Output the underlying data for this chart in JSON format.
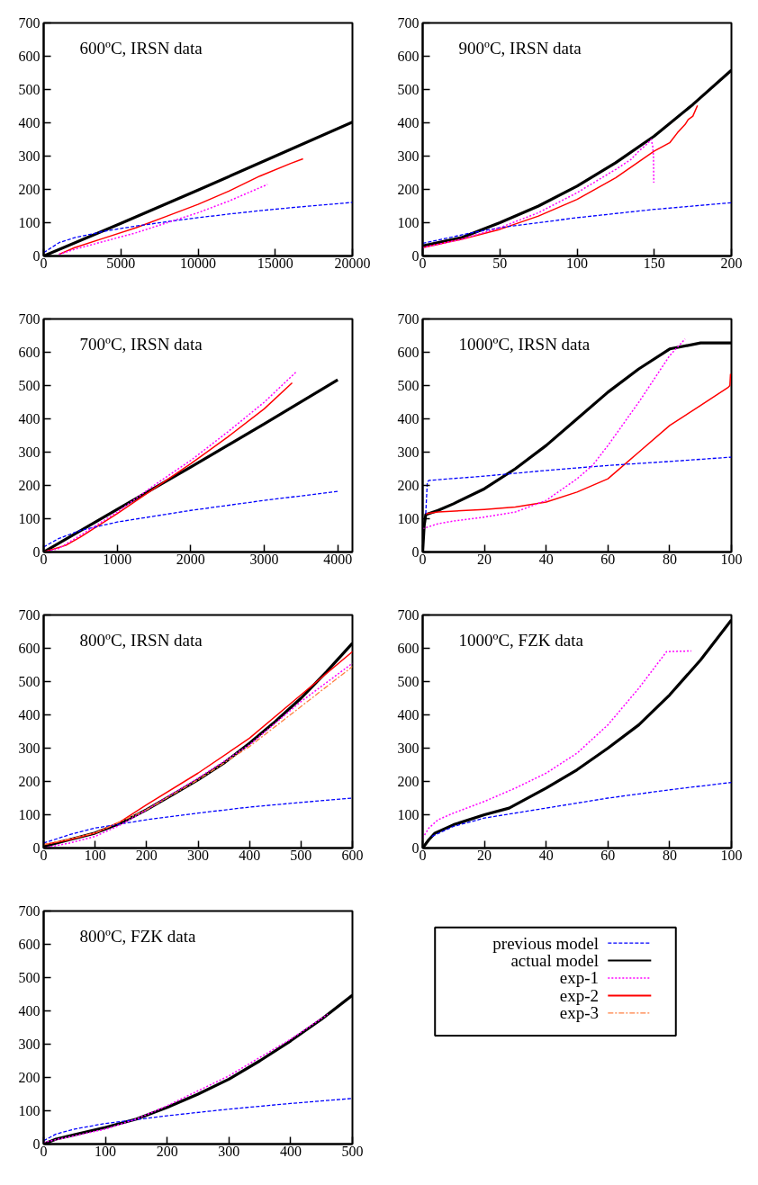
{
  "chart_data": [
    {
      "type": "line",
      "title": "600ºC, IRSN data",
      "legend": "right",
      "xlim": [
        0,
        20000
      ],
      "xticks": [
        0,
        5000,
        10000,
        15000,
        20000
      ],
      "ylim": [
        0,
        700
      ],
      "yticks": [
        0,
        100,
        200,
        300,
        400,
        500,
        600,
        700
      ],
      "series": [
        {
          "name": "previous model",
          "color": "#0000ff",
          "line_style": "dashed",
          "x": [
            0,
            1000,
            2000,
            4000,
            6000,
            8000,
            10000,
            12000,
            14000,
            16000,
            18000,
            20000
          ],
          "values": [
            10,
            40,
            55,
            75,
            90,
            103,
            115,
            126,
            136,
            145,
            153,
            161
          ]
        },
        {
          "name": "actual model",
          "color": "#000000",
          "line_style": "solid",
          "x": [
            0,
            5000,
            10000,
            15000,
            20000
          ],
          "values": [
            0,
            98,
            198,
            300,
            402
          ]
        },
        {
          "name": "exp-1",
          "color": "#ff00ff",
          "line_style": "dotted",
          "x": [
            1000,
            2000,
            4000,
            6000,
            8000,
            10000,
            12000,
            14000,
            14500
          ],
          "values": [
            5,
            20,
            45,
            70,
            100,
            130,
            165,
            205,
            215
          ]
        },
        {
          "name": "exp-2",
          "color": "#ff0000",
          "line_style": "solid",
          "x": [
            1000,
            2000,
            4000,
            6000,
            8000,
            10000,
            12000,
            14000,
            16000,
            16800
          ],
          "values": [
            5,
            25,
            55,
            85,
            120,
            155,
            195,
            240,
            278,
            292
          ]
        }
      ]
    },
    {
      "type": "line",
      "title": "900ºC, IRSN data",
      "legend": "right",
      "xlim": [
        0,
        200
      ],
      "xticks": [
        0,
        50,
        100,
        150,
        200
      ],
      "ylim": [
        0,
        700
      ],
      "yticks": [
        0,
        100,
        200,
        300,
        400,
        500,
        600,
        700
      ],
      "series": [
        {
          "name": "previous model",
          "color": "#0000ff",
          "line_style": "dashed",
          "x": [
            0,
            30,
            50,
            100,
            150,
            200
          ],
          "values": [
            38,
            68,
            85,
            115,
            140,
            160
          ]
        },
        {
          "name": "actual model",
          "color": "#000000",
          "line_style": "solid",
          "x": [
            0,
            25,
            50,
            75,
            100,
            125,
            150,
            175,
            200
          ],
          "values": [
            30,
            55,
            100,
            150,
            210,
            280,
            360,
            455,
            558
          ]
        },
        {
          "name": "exp-1",
          "color": "#ff00ff",
          "line_style": "dotted",
          "x": [
            0,
            25,
            50,
            75,
            100,
            125,
            135,
            140,
            145,
            148,
            149,
            149.5,
            149.7
          ],
          "values": [
            25,
            50,
            85,
            130,
            190,
            260,
            290,
            315,
            335,
            350,
            330,
            300,
            220
          ]
        },
        {
          "name": "exp-2",
          "color": "#ff0000",
          "line_style": "solid",
          "x": [
            0,
            25,
            50,
            75,
            100,
            125,
            150,
            160,
            165,
            170,
            172,
            175,
            178
          ],
          "values": [
            25,
            50,
            80,
            120,
            170,
            235,
            315,
            340,
            370,
            395,
            410,
            420,
            452
          ]
        }
      ]
    },
    {
      "type": "line",
      "title": "700ºC, IRSN data",
      "legend": "right",
      "xlim": [
        0,
        4200
      ],
      "xticks": [
        0,
        1000,
        2000,
        3000,
        4000
      ],
      "ylim": [
        0,
        700
      ],
      "yticks": [
        0,
        100,
        200,
        300,
        400,
        500,
        600,
        700
      ],
      "series": [
        {
          "name": "previous model",
          "color": "#0000ff",
          "line_style": "dashed",
          "x": [
            0,
            200,
            500,
            1000,
            2000,
            3000,
            4000
          ],
          "values": [
            15,
            40,
            65,
            90,
            125,
            155,
            182
          ]
        },
        {
          "name": "actual model",
          "color": "#000000",
          "line_style": "solid",
          "x": [
            0,
            1000,
            2000,
            3000,
            4000
          ],
          "values": [
            0,
            128,
            255,
            385,
            517
          ]
        },
        {
          "name": "exp-1",
          "color": "#ff00ff",
          "line_style": "dotted",
          "x": [
            0,
            200,
            500,
            1000,
            1500,
            2000,
            2500,
            3000,
            3440
          ],
          "values": [
            0,
            10,
            50,
            120,
            200,
            275,
            360,
            450,
            542
          ]
        },
        {
          "name": "exp-2",
          "color": "#ff0000",
          "line_style": "solid",
          "x": [
            0,
            300,
            500,
            1000,
            1500,
            2000,
            2500,
            3000,
            3380
          ],
          "values": [
            0,
            20,
            45,
            115,
            190,
            265,
            345,
            430,
            508
          ]
        }
      ]
    },
    {
      "type": "line",
      "title": "1000ºC, IRSN data",
      "legend": "right",
      "xlim": [
        0,
        100
      ],
      "xticks": [
        0,
        20,
        40,
        60,
        80,
        100
      ],
      "ylim": [
        0,
        700
      ],
      "yticks": [
        0,
        100,
        200,
        300,
        400,
        500,
        600,
        700
      ],
      "series": [
        {
          "name": "previous model",
          "color": "#0000ff",
          "line_style": "dashed",
          "x": [
            1,
            1.5,
            2,
            20,
            40,
            60,
            80,
            100
          ],
          "values": [
            115,
            210,
            215,
            228,
            245,
            260,
            272,
            285
          ]
        },
        {
          "name": "actual model",
          "color": "#000000",
          "line_style": "solid",
          "x": [
            0,
            0.5,
            1,
            5,
            10,
            20,
            30,
            40,
            50,
            60,
            70,
            80,
            90,
            100
          ],
          "values": [
            0,
            80,
            112,
            125,
            145,
            190,
            250,
            320,
            400,
            480,
            550,
            610,
            628,
            628
          ]
        },
        {
          "name": "exp-1",
          "color": "#ff00ff",
          "line_style": "dotted",
          "x": [
            0,
            5,
            10,
            20,
            30,
            40,
            50,
            55,
            60,
            70,
            80,
            85
          ],
          "values": [
            70,
            85,
            93,
            105,
            120,
            155,
            220,
            260,
            320,
            450,
            590,
            640
          ]
        },
        {
          "name": "exp-2",
          "color": "#ff0000",
          "line_style": "solid",
          "x": [
            1,
            5,
            20,
            30,
            40,
            50,
            60,
            70,
            80,
            90,
            99,
            99.5,
            99.7
          ],
          "values": [
            115,
            120,
            128,
            135,
            150,
            180,
            220,
            300,
            380,
            440,
            495,
            500,
            535
          ]
        }
      ]
    },
    {
      "type": "line",
      "title": "800ºC, IRSN data",
      "legend": "right",
      "xlim": [
        0,
        600
      ],
      "xticks": [
        0,
        100,
        200,
        300,
        400,
        500,
        600
      ],
      "ylim": [
        0,
        700
      ],
      "yticks": [
        0,
        100,
        200,
        300,
        400,
        500,
        600,
        700
      ],
      "series": [
        {
          "name": "previous model",
          "color": "#0000ff",
          "line_style": "dashed",
          "x": [
            0,
            50,
            100,
            200,
            300,
            400,
            500,
            600
          ],
          "values": [
            15,
            40,
            60,
            85,
            105,
            123,
            137,
            150
          ]
        },
        {
          "name": "actual model",
          "color": "#000000",
          "line_style": "solid",
          "x": [
            0,
            50,
            100,
            150,
            200,
            250,
            300,
            350,
            400,
            450,
            500,
            550,
            600
          ],
          "values": [
            5,
            25,
            45,
            75,
            115,
            160,
            205,
            255,
            315,
            380,
            450,
            530,
            615
          ]
        },
        {
          "name": "exp-1",
          "color": "#ff00ff",
          "line_style": "dotted",
          "x": [
            0,
            50,
            100,
            150,
            200,
            300,
            400,
            500,
            600
          ],
          "values": [
            0,
            15,
            35,
            70,
            115,
            210,
            310,
            440,
            555
          ]
        },
        {
          "name": "exp-2",
          "color": "#ff0000",
          "line_style": "solid",
          "x": [
            0,
            50,
            100,
            150,
            200,
            300,
            400,
            500,
            600
          ],
          "values": [
            10,
            25,
            45,
            80,
            130,
            225,
            330,
            460,
            590
          ]
        },
        {
          "name": "exp-3",
          "color": "#ff7f40",
          "line_style": "dashdot",
          "x": [
            0,
            100,
            200,
            300,
            400,
            500,
            600
          ],
          "values": [
            10,
            45,
            115,
            205,
            305,
            425,
            545
          ]
        }
      ]
    },
    {
      "type": "line",
      "title": "1000ºC, FZK data",
      "legend": "right",
      "xlim": [
        0,
        100
      ],
      "xticks": [
        0,
        20,
        40,
        60,
        80,
        100
      ],
      "ylim": [
        0,
        700
      ],
      "yticks": [
        0,
        100,
        200,
        300,
        400,
        500,
        600,
        700
      ],
      "series": [
        {
          "name": "previous model",
          "color": "#0000ff",
          "line_style": "dashed",
          "x": [
            3,
            10,
            20,
            40,
            60,
            80,
            100
          ],
          "values": [
            35,
            65,
            90,
            120,
            150,
            175,
            197
          ]
        },
        {
          "name": "actual model",
          "color": "#000000",
          "line_style": "solid",
          "x": [
            0,
            2,
            4,
            10,
            20,
            28,
            40,
            50,
            60,
            70,
            80,
            90,
            100
          ],
          "values": [
            0,
            25,
            45,
            70,
            100,
            120,
            180,
            235,
            300,
            370,
            460,
            565,
            685
          ]
        },
        {
          "name": "exp-1",
          "color": "#ff00ff",
          "line_style": "dotted",
          "x": [
            0,
            2,
            5,
            10,
            20,
            30,
            40,
            50,
            60,
            70,
            79,
            87
          ],
          "values": [
            30,
            60,
            85,
            105,
            140,
            180,
            225,
            285,
            370,
            480,
            590,
            592
          ]
        }
      ]
    },
    {
      "type": "line",
      "title": "800ºC, FZK data",
      "xlim": [
        0,
        500
      ],
      "xticks": [
        0,
        100,
        200,
        300,
        400,
        500
      ],
      "ylim": [
        0,
        700
      ],
      "yticks": [
        0,
        100,
        200,
        300,
        400,
        500,
        600,
        700
      ],
      "legend": "right",
      "series": [
        {
          "name": "previous model",
          "color": "#0000ff",
          "line_style": "dashed",
          "x": [
            0,
            20,
            50,
            100,
            200,
            300,
            400,
            500
          ],
          "values": [
            10,
            30,
            45,
            62,
            85,
            105,
            122,
            137
          ]
        },
        {
          "name": "actual model",
          "color": "#000000",
          "line_style": "solid",
          "x": [
            0,
            20,
            50,
            100,
            150,
            200,
            250,
            300,
            350,
            400,
            450,
            500
          ],
          "values": [
            0,
            15,
            28,
            50,
            75,
            110,
            150,
            195,
            250,
            310,
            375,
            447
          ]
        },
        {
          "name": "exp-1",
          "color": "#ff00ff",
          "line_style": "dotted",
          "x": [
            0,
            50,
            100,
            150,
            200,
            300,
            400,
            460
          ],
          "values": [
            5,
            25,
            45,
            75,
            115,
            205,
            315,
            390
          ]
        }
      ]
    }
  ]
}
